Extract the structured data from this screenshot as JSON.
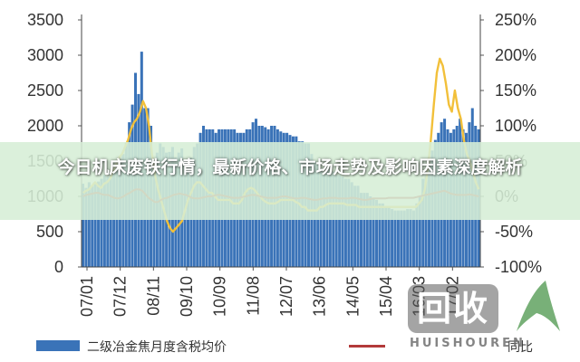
{
  "banner": {
    "title": "今日机床废铁行情，最新价格、市场走势及影响因素深度解析"
  },
  "watermark": {
    "logo_text": "回收",
    "sub_text": "HUISHOUREN",
    "leaf_color": "#3f8f3f"
  },
  "chart_data": {
    "type": "bar",
    "x_ticks": [
      "07/01",
      "07/12",
      "08/11",
      "09/10",
      "10/09",
      "11/08",
      "12/07",
      "13/06",
      "14/05",
      "15/04",
      "16/03",
      "17/02"
    ],
    "y_left": {
      "ylim": [
        0,
        3500
      ],
      "ticks": [
        "0",
        "500",
        "1000",
        "1500",
        "2000",
        "2500",
        "3000",
        "3500"
      ]
    },
    "y_right": {
      "ylim": [
        -100,
        250
      ],
      "ticks": [
        "-100%",
        "-50%",
        "0%",
        "50%",
        "100%",
        "150%",
        "200%",
        "250%"
      ]
    },
    "series": [
      {
        "name": "二级冶金焦月度含税均价",
        "kind": "bar",
        "color": "#3a73b8",
        "values": [
          1180,
          1120,
          1200,
          1150,
          1180,
          1210,
          1250,
          1300,
          1280,
          1330,
          1360,
          1400,
          1500,
          1600,
          1760,
          2050,
          2300,
          2750,
          2450,
          3050,
          2250,
          2250,
          2000,
          1500,
          1620,
          1750,
          1700,
          1620,
          1630,
          1700,
          1550,
          1620,
          1680,
          1500,
          1520,
          1550,
          1700,
          1750,
          1900,
          2000,
          1950,
          1950,
          1950,
          1900,
          1950,
          1950,
          1950,
          1950,
          1950,
          1950,
          1900,
          1900,
          1900,
          1950,
          1950,
          2050,
          2100,
          2000,
          2000,
          1980,
          1950,
          2000,
          2000,
          1950,
          1920,
          1900,
          1900,
          1870,
          1850,
          1850,
          1780,
          1780,
          1750,
          1750,
          1600,
          1500,
          1450,
          1400,
          1350,
          1400,
          1400,
          1350,
          1300,
          1300,
          1280,
          1250,
          1250,
          1200,
          1150,
          1150,
          1050,
          1050,
          1050,
          1000,
          980,
          950,
          900,
          900,
          850,
          850,
          820,
          800,
          800,
          800,
          800,
          820,
          820,
          800,
          900,
          1000,
          1250,
          1300,
          1450,
          1650,
          1800,
          1900,
          2050,
          2100,
          1950,
          1900,
          1950,
          2000,
          2100,
          1950,
          1900,
          2050,
          2250,
          2000,
          1950
        ]
      },
      {
        "name": "",
        "kind": "line",
        "color": "#f2c03a",
        "axis": "right",
        "values": [
          5,
          8,
          10,
          15,
          20,
          15,
          12,
          18,
          20,
          25,
          35,
          45,
          55,
          60,
          70,
          80,
          95,
          105,
          110,
          120,
          135,
          125,
          100,
          60,
          30,
          10,
          -5,
          -20,
          -35,
          -45,
          -50,
          -45,
          -40,
          -35,
          -20,
          -5,
          5,
          15,
          20,
          20,
          15,
          10,
          5,
          5,
          0,
          -5,
          -5,
          -5,
          -5,
          -5,
          -10,
          -10,
          -10,
          -5,
          5,
          10,
          12,
          10,
          5,
          0,
          -5,
          -8,
          -10,
          -10,
          -10,
          -8,
          -5,
          -5,
          -5,
          -5,
          -5,
          -8,
          -10,
          -15,
          -15,
          -20,
          -20,
          -20,
          -20,
          -15,
          -15,
          -12,
          -10,
          -10,
          -10,
          -10,
          -10,
          -10,
          -12,
          -12,
          -12,
          -12,
          -15,
          -15,
          -15,
          -15,
          -15,
          -15,
          -15,
          -15,
          -15,
          -15,
          -15,
          -15,
          -15,
          -15,
          -15,
          -15,
          -15,
          -15,
          -15,
          -15,
          -10,
          -5,
          10,
          40,
          80,
          130,
          175,
          195,
          185,
          160,
          130,
          120,
          150,
          125,
          110,
          80,
          60,
          50,
          35,
          20,
          10
        ]
      },
      {
        "name": "",
        "kind": "line",
        "color": "#b33a3a",
        "axis": "right",
        "values": [
          0,
          2,
          3,
          4,
          5,
          5,
          3,
          2,
          2,
          0,
          -2,
          -3,
          -2,
          0,
          3,
          5,
          8,
          10,
          10,
          8,
          3,
          -2,
          -5,
          -8,
          -8,
          -5,
          -3,
          -2,
          0,
          2,
          3,
          4,
          3,
          2,
          0,
          -2,
          -3,
          -3,
          -2,
          -1,
          0,
          0,
          1,
          2,
          2,
          1,
          0,
          -1,
          -2,
          -2,
          -2,
          -1,
          0,
          1,
          2,
          2,
          1,
          0,
          -1,
          -2,
          -2,
          -2,
          -2,
          -1,
          0,
          0,
          -1,
          -2,
          -3,
          -3,
          -2,
          -2,
          -3,
          -4,
          -5,
          -5,
          -4,
          -3,
          -3,
          -2,
          -2,
          -2,
          -3,
          -3,
          -3,
          -3,
          -2,
          -2,
          -3,
          -4,
          -5,
          -5,
          -4,
          -3,
          -3,
          -3,
          -3,
          -3,
          -2,
          -2,
          -2,
          -2,
          -2,
          -2,
          -2,
          -2,
          -2,
          -1,
          0,
          1,
          2,
          3,
          4,
          5,
          6,
          7,
          8,
          6,
          4,
          3,
          2,
          2,
          2,
          2,
          3,
          2,
          1,
          0
        ]
      }
    ],
    "legend": [
      {
        "label": "二级冶金焦月度含税均价",
        "color": "#3a73b8"
      },
      {
        "label": "同比",
        "color": "#b33a3a"
      }
    ]
  }
}
